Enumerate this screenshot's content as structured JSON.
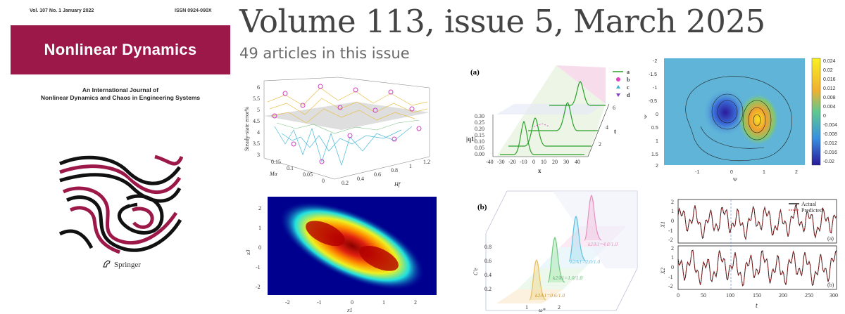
{
  "cover": {
    "volume_line": "Vol. 107  No. 1  January  2022",
    "issn": "ISSN 0924-090X",
    "title": "Nonlinear Dynamics",
    "subtitle_line1": "An International Journal of",
    "subtitle_line2": "Nonlinear Dynamics and Chaos in Engineering Systems",
    "publisher": "Springer",
    "band_color": "#9c1848"
  },
  "headline": "Volume 113, issue 5, March 2025",
  "article_count": "49 articles in this issue",
  "figures": {
    "surface_plot": {
      "zlabel": "Steady-state error%",
      "ylabel": "Mα",
      "xlabel": "Hf",
      "z_ticks": [
        "3",
        "3.5",
        "4",
        "4.5",
        "5",
        "5.5",
        "6"
      ],
      "y_ticks": [
        "0.15",
        "0.1",
        "0.05",
        "0"
      ],
      "x_ticks": [
        "0.2",
        "0.4",
        "0.6",
        "0.8",
        "1",
        "1.2"
      ]
    },
    "heatmap_plot": {
      "xlabel": "x1",
      "ylabel": "x3",
      "x_ticks": [
        "-2",
        "-1",
        "0",
        "1",
        "2"
      ],
      "y_ticks": [
        "2",
        "1",
        "0",
        "-1",
        "-2"
      ]
    },
    "soliton_plot": {
      "panel": "(a)",
      "ylabel": "|q1|",
      "xlabel": "x",
      "tlabel": "t",
      "y_ticks": [
        "0.30",
        "0.25",
        "0.20",
        "0.15",
        "0.10",
        "0.05",
        "0.00"
      ],
      "x_ticks": [
        "-40",
        "-30",
        "-20",
        "-10",
        "0",
        "10",
        "20",
        "30",
        "40"
      ],
      "t_ticks": [
        "6",
        "4",
        "2"
      ],
      "legend": [
        "a",
        "b",
        "c",
        "d"
      ],
      "legend_colors": [
        "#2aa02a",
        "#e040c0",
        "#40b0d0",
        "#8040c0"
      ]
    },
    "layered_plot": {
      "panel": "(b)",
      "ylabel": "C'e",
      "xlabel": "ω*",
      "y_ticks": [
        "0.8",
        "0.6",
        "0.4",
        "0.2"
      ],
      "x_ticks": [
        "1",
        "2"
      ],
      "annotations": [
        {
          "text": "k2/k1=4.0/1.0",
          "color": "#e890c0"
        },
        {
          "text": "k2/k1=2.0/1.0",
          "color": "#60c0e0"
        },
        {
          "text": "k2/k1=1.0/1.0",
          "color": "#70c880"
        },
        {
          "text": "k2/k1=0.6/1.0",
          "color": "#d8b040"
        }
      ]
    },
    "contour_plot": {
      "xlabel": "Ψ",
      "ylabel": "Ψ",
      "x_ticks": [
        "-1",
        "0",
        "1",
        "2"
      ],
      "y_ticks": [
        "-2",
        "-1.5",
        "-1",
        "-0.5",
        "0",
        "0.5",
        "1",
        "1.5",
        "2"
      ],
      "colorbar_ticks": [
        "0.024",
        "0.02",
        "0.016",
        "0.012",
        "0.008",
        "0.004",
        "0",
        "-0.004",
        "-0.008",
        "-0.012",
        "-0.016",
        "-0.02"
      ]
    },
    "timeseries_plot": {
      "legend_actual": "Actual",
      "legend_predicted": "Predicted",
      "ylabel_top": "X1",
      "ylabel_bottom": "X2",
      "xlabel": "t",
      "panel_a": "(a)",
      "panel_b": "(b)",
      "y_ticks": [
        "2",
        "1",
        "0",
        "-1",
        "-2"
      ],
      "x_ticks": [
        "0",
        "50",
        "100",
        "150",
        "200",
        "250",
        "300"
      ]
    }
  }
}
